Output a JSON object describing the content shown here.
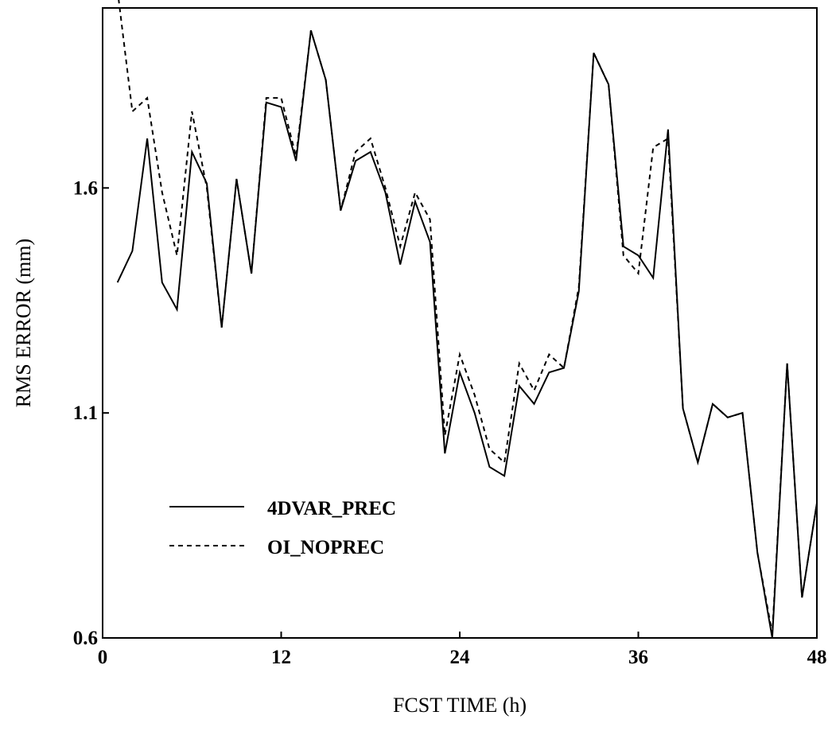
{
  "chart_data": {
    "type": "line",
    "xlabel": "FCST TIME (h)",
    "ylabel": "RMS ERROR (mm)",
    "xlim": [
      0,
      48
    ],
    "ylim": [
      0.6,
      2.0
    ],
    "xticks": [
      0,
      12,
      24,
      36,
      48
    ],
    "xtick_labels": [
      "0",
      "12",
      "24",
      "36",
      "48"
    ],
    "yticks": [
      0.6,
      1.1,
      1.6
    ],
    "ytick_labels": [
      "0.6",
      "1.1",
      "1.6"
    ],
    "grid": false,
    "legend_position": "lower-left",
    "x": [
      1,
      2,
      3,
      4,
      5,
      6,
      7,
      8,
      9,
      10,
      11,
      12,
      13,
      14,
      15,
      16,
      17,
      18,
      19,
      20,
      21,
      22,
      23,
      24,
      25,
      26,
      27,
      28,
      29,
      30,
      31,
      32,
      33,
      34,
      35,
      36,
      37,
      38,
      39,
      40,
      41,
      42,
      43,
      44,
      45,
      46,
      47,
      48
    ],
    "series": [
      {
        "name": "4DVAR_PREC",
        "style": "solid",
        "values": [
          1.39,
          1.46,
          1.71,
          1.39,
          1.33,
          1.68,
          1.61,
          1.29,
          1.62,
          1.41,
          1.79,
          1.78,
          1.66,
          1.95,
          1.84,
          1.55,
          1.66,
          1.68,
          1.59,
          1.43,
          1.57,
          1.48,
          1.01,
          1.19,
          1.1,
          0.98,
          0.96,
          1.16,
          1.12,
          1.19,
          1.2,
          1.37,
          1.9,
          1.83,
          1.47,
          1.45,
          1.4,
          1.73,
          1.11,
          0.99,
          1.12,
          1.09,
          1.1,
          0.79,
          0.6,
          1.21,
          0.69,
          0.9
        ]
      },
      {
        "name": "OI_NOPREC",
        "style": "dashed",
        "values": [
          2.04,
          1.77,
          1.8,
          1.59,
          1.45,
          1.77,
          1.6,
          1.29,
          1.62,
          1.41,
          1.8,
          1.8,
          1.67,
          1.95,
          1.84,
          1.55,
          1.68,
          1.71,
          1.6,
          1.47,
          1.59,
          1.53,
          1.05,
          1.23,
          1.14,
          1.02,
          0.99,
          1.21,
          1.15,
          1.23,
          1.2,
          1.38,
          1.9,
          1.83,
          1.45,
          1.41,
          1.69,
          1.71,
          1.11,
          0.99,
          1.12,
          1.09,
          1.1,
          0.79,
          0.61,
          1.21,
          0.69,
          0.9
        ]
      }
    ]
  }
}
